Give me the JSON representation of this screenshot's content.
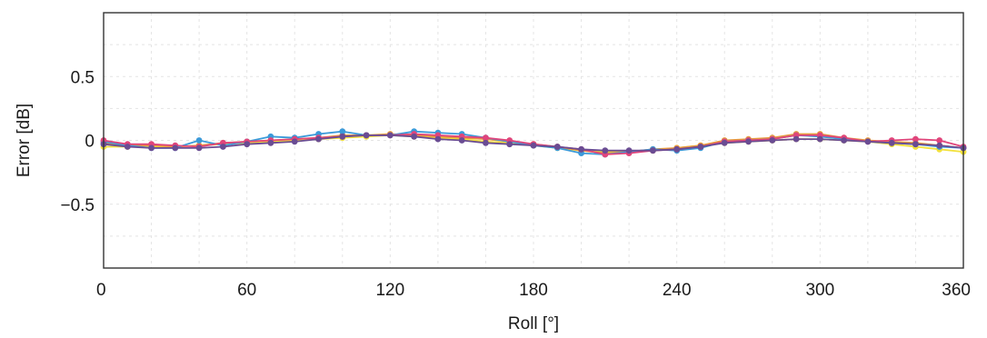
{
  "chart_data": {
    "type": "line",
    "title": "",
    "xlabel": "Roll [°]",
    "ylabel": "Error [dB]",
    "xlim": [
      0,
      360
    ],
    "ylim": [
      -1.0,
      1.0
    ],
    "x_ticks": [
      0,
      60,
      120,
      180,
      240,
      300,
      360
    ],
    "x_tick_labels": [
      "0",
      "60",
      "120",
      "180",
      "240",
      "300",
      "360"
    ],
    "y_ticks": [
      0.5,
      0,
      -0.5
    ],
    "y_tick_labels": [
      "0.5",
      "0",
      "−0.5"
    ],
    "grid": true,
    "x": [
      0,
      10,
      20,
      30,
      40,
      50,
      60,
      70,
      80,
      90,
      100,
      110,
      120,
      130,
      140,
      150,
      160,
      170,
      180,
      190,
      200,
      210,
      220,
      230,
      240,
      250,
      260,
      270,
      280,
      290,
      300,
      310,
      320,
      330,
      340,
      350,
      360
    ],
    "series": [
      {
        "color": "#f2e13c",
        "values": [
          -0.05,
          -0.05,
          -0.05,
          -0.05,
          -0.04,
          -0.03,
          -0.02,
          -0.01,
          0.0,
          0.01,
          0.02,
          0.03,
          0.04,
          0.03,
          0.02,
          0.01,
          -0.01,
          -0.02,
          -0.04,
          -0.06,
          -0.08,
          -0.09,
          -0.09,
          -0.08,
          -0.06,
          -0.04,
          -0.02,
          -0.01,
          0.0,
          0.01,
          0.01,
          0.0,
          -0.01,
          -0.03,
          -0.05,
          -0.07,
          -0.09
        ]
      },
      {
        "color": "#e89a3c",
        "values": [
          -0.02,
          -0.04,
          -0.04,
          -0.05,
          -0.04,
          -0.02,
          -0.01,
          0.0,
          0.01,
          0.02,
          0.04,
          0.04,
          0.05,
          0.04,
          0.03,
          0.02,
          0.01,
          -0.01,
          -0.03,
          -0.05,
          -0.08,
          -0.1,
          -0.09,
          -0.07,
          -0.06,
          -0.04,
          0.0,
          0.01,
          0.02,
          0.05,
          0.05,
          0.02,
          0.0,
          -0.01,
          -0.02,
          -0.04,
          -0.06
        ]
      },
      {
        "color": "#3b9ad9",
        "values": [
          -0.01,
          -0.04,
          -0.06,
          -0.06,
          0.0,
          -0.04,
          -0.01,
          0.03,
          0.02,
          0.05,
          0.07,
          0.04,
          0.04,
          0.07,
          0.06,
          0.05,
          0.02,
          -0.01,
          -0.04,
          -0.06,
          -0.1,
          -0.11,
          -0.09,
          -0.07,
          -0.08,
          -0.06,
          -0.01,
          0.0,
          0.01,
          0.04,
          0.03,
          0.01,
          -0.01,
          -0.02,
          -0.03,
          -0.05,
          -0.06
        ]
      },
      {
        "color": "#e0457b",
        "values": [
          0.0,
          -0.03,
          -0.03,
          -0.04,
          -0.05,
          -0.02,
          -0.01,
          0.0,
          0.01,
          0.02,
          0.03,
          0.04,
          0.04,
          0.05,
          0.04,
          0.03,
          0.02,
          0.0,
          -0.03,
          -0.05,
          -0.07,
          -0.11,
          -0.1,
          -0.08,
          -0.07,
          -0.05,
          -0.01,
          0.0,
          0.01,
          0.04,
          0.04,
          0.02,
          -0.01,
          0.0,
          0.01,
          0.0,
          -0.05
        ]
      },
      {
        "color": "#6a4c93",
        "values": [
          -0.03,
          -0.05,
          -0.06,
          -0.06,
          -0.06,
          -0.05,
          -0.03,
          -0.02,
          -0.01,
          0.01,
          0.03,
          0.04,
          0.04,
          0.03,
          0.01,
          0.0,
          -0.02,
          -0.03,
          -0.04,
          -0.05,
          -0.07,
          -0.08,
          -0.08,
          -0.08,
          -0.07,
          -0.05,
          -0.02,
          -0.01,
          0.0,
          0.01,
          0.01,
          0.0,
          -0.01,
          -0.02,
          -0.03,
          -0.04,
          -0.06
        ]
      }
    ]
  }
}
